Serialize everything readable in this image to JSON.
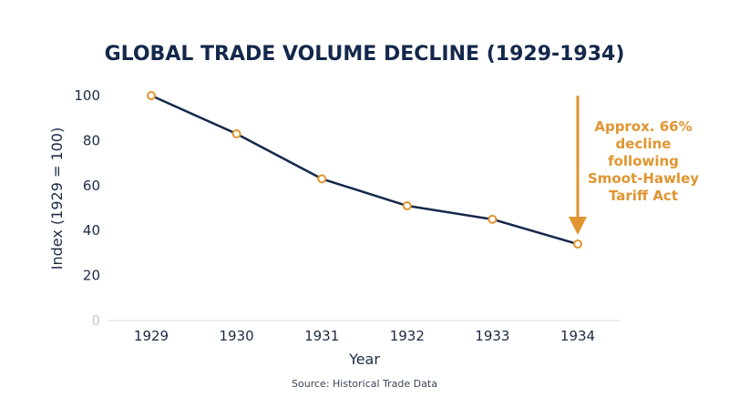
{
  "chart_data": {
    "type": "line",
    "title": "GLOBAL TRADE VOLUME DECLINE (1929-1934)",
    "xlabel": "Year",
    "ylabel": "Index (1929 = 100)",
    "categories": [
      "1929",
      "1930",
      "1931",
      "1932",
      "1933",
      "1934"
    ],
    "series": [
      {
        "values": [
          100,
          83,
          63,
          51,
          45,
          34
        ]
      }
    ],
    "ylim": [
      0,
      100
    ],
    "yticks": [
      "0",
      "20",
      "40",
      "60",
      "80",
      "100"
    ],
    "grid": false,
    "annotation": {
      "lines": [
        "Approx. 66%",
        "decline",
        "following",
        "Smoot-Hawley",
        "Tariff Act"
      ],
      "target_category": "1934"
    },
    "source": "Source: Historical Trade Data",
    "colors": {
      "line": "#14284b",
      "marker": "#e09530",
      "annotation": "#e09530",
      "title": "#14284b"
    }
  }
}
